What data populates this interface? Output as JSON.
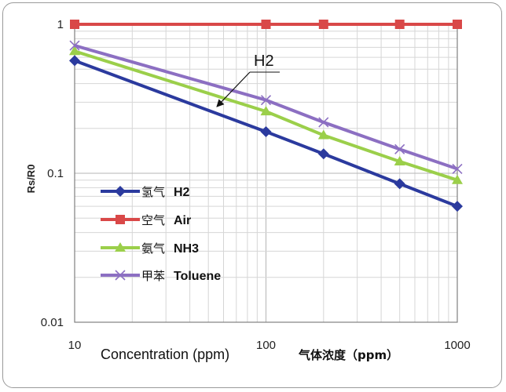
{
  "chart_data": {
    "type": "line",
    "x_scale": "log",
    "y_scale": "log",
    "xlim": [
      10,
      1000
    ],
    "ylim": [
      0.01,
      1
    ],
    "x_ticks": [
      "10",
      "100",
      "1000"
    ],
    "y_ticks": [
      "1",
      "0.1",
      "0.01"
    ],
    "ylabel": "Rs/R0",
    "xlabel_en": "Concentration (ppm)",
    "xlabel_cn": "气体浓度（ppm）",
    "grid": true,
    "legend_position": "left",
    "annotation": "H2",
    "x": [
      10,
      100,
      200,
      500,
      1000
    ],
    "series": [
      {
        "name_cn": "氢气",
        "name_en": "H2",
        "marker": "diamond",
        "color": "#2b3a9e",
        "values": [
          0.57,
          0.19,
          0.135,
          0.085,
          0.06
        ]
      },
      {
        "name_cn": "空气",
        "name_en": "Air",
        "marker": "square",
        "color": "#d94848",
        "values": [
          1,
          1,
          1,
          1,
          1
        ]
      },
      {
        "name_cn": "氨气",
        "name_en": "NH3",
        "marker": "triangle",
        "color": "#9bcf4a",
        "values": [
          0.66,
          0.26,
          0.18,
          0.12,
          0.09
        ]
      },
      {
        "name_cn": "甲苯",
        "name_en": "Toluene",
        "marker": "x",
        "color": "#8c6fc2",
        "values": [
          0.72,
          0.31,
          0.22,
          0.145,
          0.107
        ]
      }
    ]
  }
}
